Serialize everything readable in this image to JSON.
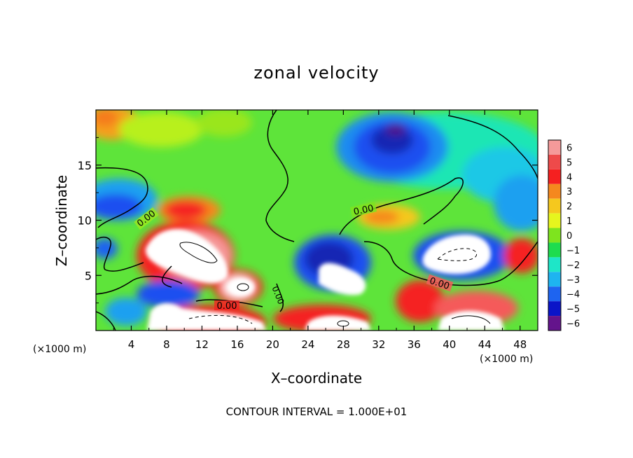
{
  "chart_data": {
    "type": "heatmap",
    "title": "zonal velocity",
    "xlabel": "X–coordinate",
    "ylabel": "Z–coordinate",
    "x_unit_left": "(×1000 m)",
    "x_unit_right": "(×1000 m)",
    "xlim": [
      0,
      50
    ],
    "ylim": [
      0,
      20
    ],
    "x_ticks": [
      4,
      8,
      12,
      16,
      20,
      24,
      28,
      32,
      36,
      40,
      44,
      48
    ],
    "y_ticks": [
      5,
      10,
      15
    ],
    "x_tick_labels": [
      "4",
      "8",
      "12",
      "16",
      "20",
      "24",
      "28",
      "32",
      "36",
      "40",
      "44",
      "48"
    ],
    "y_tick_labels": [
      "5",
      "10",
      "15"
    ],
    "footer": "CONTOUR INTERVAL = 1.000E+01",
    "contour_labels": [
      "0.00",
      "0.00",
      "0.00",
      "0.00",
      "0.00"
    ],
    "colorbar": {
      "levels": [
        6,
        5,
        4,
        3,
        2,
        1,
        0,
        -1,
        -2,
        -3,
        -4,
        -5,
        -6
      ],
      "labels": [
        "6",
        "5",
        "4",
        "3",
        "2",
        "1",
        "0",
        "−1",
        "−2",
        "−3",
        "−4",
        "−5",
        "−6"
      ],
      "colors": [
        "#f59a9a",
        "#ee4a4a",
        "#f52020",
        "#f5881e",
        "#f5c81e",
        "#e6f51e",
        "#7ee41e",
        "#1edc4e",
        "#1ee6c8",
        "#1eb4f0",
        "#1e64f0",
        "#0a14c8",
        "#64148c"
      ]
    }
  }
}
